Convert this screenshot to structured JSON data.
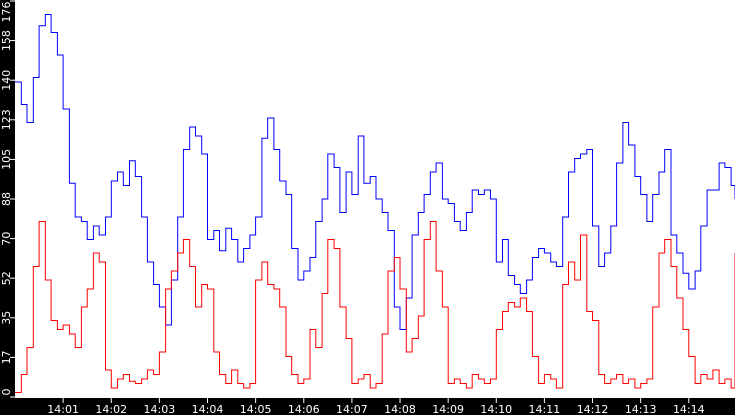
{
  "chart_data": {
    "type": "line",
    "title": "",
    "xlabel": "",
    "ylabel": "",
    "ylim": [
      0,
      176
    ],
    "grid": false,
    "legend": null,
    "y_ticks": [
      "0",
      "17",
      "35",
      "52",
      "70",
      "88",
      "105",
      "123",
      "140",
      "158",
      "176"
    ],
    "y_tick_values": [
      0,
      17.6,
      35.2,
      52.8,
      70.4,
      88,
      105.6,
      123.2,
      140.8,
      158.4,
      176
    ],
    "x_ticks": [
      "14:01",
      "14:02",
      "14:03",
      "14:04",
      "14:05",
      "14:06",
      "14:07",
      "14:08",
      "14:09",
      "14:10",
      "14:11",
      "14:12",
      "14:13",
      "14:14"
    ],
    "x_range_minutes": [
      0.0,
      14.96
    ],
    "colors": {
      "series_1": "#0000ff",
      "series_2": "#ff0000",
      "plot_bg": "#ffffff",
      "frame": "#000000",
      "tick_text": "#ffffff"
    },
    "x": [
      0.0,
      0.13,
      0.25,
      0.38,
      0.5,
      0.63,
      0.75,
      0.88,
      1.0,
      1.13,
      1.25,
      1.38,
      1.5,
      1.63,
      1.75,
      1.88,
      2.0,
      2.13,
      2.25,
      2.38,
      2.5,
      2.63,
      2.75,
      2.88,
      3.0,
      3.13,
      3.25,
      3.38,
      3.5,
      3.63,
      3.75,
      3.88,
      4.0,
      4.13,
      4.25,
      4.38,
      4.5,
      4.63,
      4.75,
      4.88,
      5.0,
      5.13,
      5.25,
      5.38,
      5.5,
      5.63,
      5.75,
      5.88,
      6.0,
      6.13,
      6.25,
      6.38,
      6.5,
      6.63,
      6.75,
      6.88,
      7.0,
      7.13,
      7.25,
      7.38,
      7.5,
      7.63,
      7.75,
      7.88,
      8.0,
      8.13,
      8.25,
      8.38,
      8.5,
      8.63,
      8.75,
      8.88,
      9.0,
      9.13,
      9.25,
      9.38,
      9.5,
      9.63,
      9.75,
      9.88,
      10.0,
      10.13,
      10.25,
      10.38,
      10.5,
      10.63,
      10.75,
      10.88,
      11.0,
      11.13,
      11.25,
      11.38,
      11.5,
      11.63,
      11.75,
      11.88,
      12.0,
      12.13,
      12.25,
      12.38,
      12.5,
      12.63,
      12.75,
      12.88,
      13.0,
      13.13,
      13.25,
      13.38,
      13.5,
      13.63,
      13.75,
      13.88,
      14.0,
      14.13,
      14.25,
      14.38,
      14.5,
      14.63,
      14.75,
      14.88,
      14.96
    ],
    "series": [
      {
        "name": "series_1",
        "color": "#0000ff",
        "values": [
          140,
          130,
          122,
          142,
          165,
          170,
          162,
          152,
          128,
          95,
          80,
          78,
          70,
          76,
          72,
          80,
          96,
          100,
          94,
          105,
          98,
          80,
          60,
          50,
          40,
          32,
          52,
          80,
          110,
          120,
          116,
          108,
          70,
          74,
          65,
          75,
          70,
          60,
          66,
          72,
          80,
          115,
          124,
          110,
          96,
          90,
          66,
          52,
          56,
          62,
          78,
          88,
          108,
          102,
          82,
          100,
          90,
          116,
          95,
          98,
          88,
          82,
          74,
          40,
          30,
          44,
          72,
          82,
          90,
          100,
          104,
          88,
          86,
          78,
          74,
          82,
          92,
          90,
          92,
          88,
          60,
          70,
          54,
          50,
          46,
          52,
          62,
          66,
          64,
          60,
          58,
          80,
          100,
          106,
          108,
          110,
          76,
          58,
          64,
          76,
          104,
          122,
          112,
          98,
          90,
          78,
          90,
          100,
          110,
          72,
          64,
          55,
          48,
          56,
          76,
          92,
          92,
          104,
          102,
          94,
          88
        ]
      },
      {
        "name": "series_2",
        "color": "#ff0000",
        "values": [
          2,
          10,
          22,
          58,
          78,
          52,
          34,
          30,
          32,
          28,
          22,
          40,
          48,
          64,
          60,
          12,
          4,
          8,
          10,
          7,
          6,
          8,
          12,
          10,
          20,
          48,
          56,
          64,
          70,
          58,
          40,
          50,
          48,
          20,
          10,
          6,
          12,
          6,
          4,
          6,
          52,
          60,
          50,
          48,
          40,
          18,
          10,
          6,
          8,
          30,
          22,
          46,
          70,
          66,
          40,
          26,
          6,
          8,
          10,
          4,
          6,
          28,
          56,
          62,
          48,
          20,
          26,
          36,
          70,
          78,
          56,
          40,
          6,
          8,
          6,
          4,
          10,
          8,
          6,
          8,
          30,
          38,
          42,
          40,
          44,
          38,
          18,
          6,
          10,
          8,
          4,
          50,
          60,
          52,
          72,
          38,
          34,
          10,
          6,
          8,
          10,
          6,
          8,
          4,
          6,
          8,
          40,
          64,
          70,
          58,
          44,
          30,
          18,
          6,
          10,
          8,
          12,
          6,
          8,
          4,
          64
        ]
      }
    ]
  },
  "axes": {
    "y_labels": [
      "0",
      "17",
      "35",
      "52",
      "70",
      "88",
      "105",
      "123",
      "140",
      "158",
      "176"
    ],
    "x_labels": [
      "14:01",
      "14:02",
      "14:03",
      "14:04",
      "14:05",
      "14:06",
      "14:07",
      "14:08",
      "14:09",
      "14:10",
      "14:11",
      "14:12",
      "14:13",
      "14:14"
    ]
  }
}
